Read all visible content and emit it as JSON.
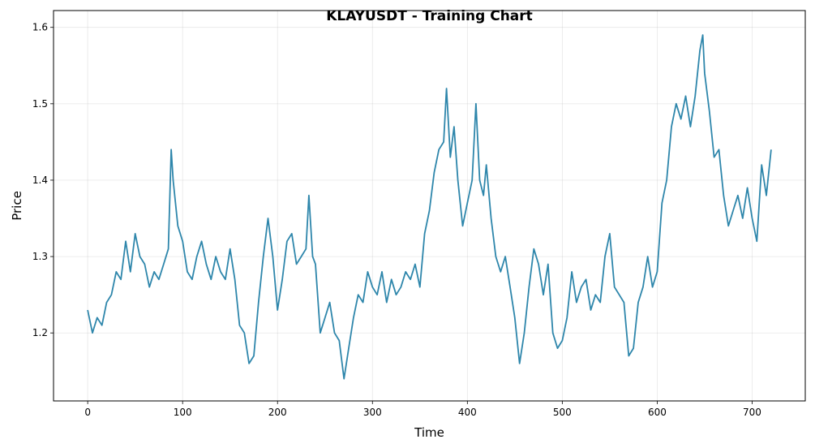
{
  "chart_data": {
    "type": "line",
    "title": "KLAYUSDT - Training Chart",
    "xlabel": "Time",
    "ylabel": "Price",
    "xlim": [
      -36,
      756
    ],
    "ylim": [
      1.111,
      1.622
    ],
    "x_ticks": [
      0,
      100,
      200,
      300,
      400,
      500,
      600,
      700
    ],
    "y_ticks": [
      1.2,
      1.3,
      1.4,
      1.5,
      1.6
    ],
    "grid": true,
    "legend": "none",
    "line_color": "#2e86ab",
    "series": [
      {
        "x": [
          0,
          5,
          10,
          15,
          20,
          25,
          30,
          35,
          40,
          45,
          50,
          55,
          60,
          65,
          70,
          75,
          80,
          85,
          88,
          90,
          95,
          100,
          105,
          110,
          115,
          120,
          125,
          130,
          135,
          140,
          145,
          150,
          155,
          160,
          165,
          170,
          175,
          180,
          185,
          190,
          195,
          200,
          205,
          210,
          215,
          220,
          225,
          230,
          233,
          237,
          240,
          245,
          250,
          255,
          260,
          265,
          270,
          275,
          280,
          285,
          290,
          295,
          300,
          305,
          310,
          315,
          320,
          325,
          330,
          335,
          340,
          345,
          350,
          355,
          360,
          365,
          370,
          375,
          378,
          382,
          386,
          390,
          395,
          400,
          405,
          409,
          413,
          417,
          420,
          425,
          430,
          435,
          440,
          445,
          450,
          455,
          460,
          465,
          470,
          475,
          480,
          485,
          490,
          495,
          500,
          505,
          510,
          515,
          520,
          525,
          530,
          535,
          540,
          545,
          550,
          555,
          560,
          565,
          570,
          575,
          580,
          585,
          590,
          595,
          600,
          605,
          610,
          615,
          620,
          625,
          630,
          635,
          640,
          645,
          648,
          650,
          655,
          660,
          665,
          670,
          675,
          680,
          685,
          690,
          695,
          700,
          705,
          710,
          715,
          720
        ],
        "values": [
          1.23,
          1.2,
          1.22,
          1.21,
          1.24,
          1.25,
          1.28,
          1.27,
          1.32,
          1.28,
          1.33,
          1.3,
          1.29,
          1.26,
          1.28,
          1.27,
          1.29,
          1.31,
          1.44,
          1.4,
          1.34,
          1.32,
          1.28,
          1.27,
          1.3,
          1.32,
          1.29,
          1.27,
          1.3,
          1.28,
          1.27,
          1.31,
          1.27,
          1.21,
          1.2,
          1.16,
          1.17,
          1.24,
          1.3,
          1.35,
          1.3,
          1.23,
          1.27,
          1.32,
          1.33,
          1.29,
          1.3,
          1.31,
          1.38,
          1.3,
          1.29,
          1.2,
          1.22,
          1.24,
          1.2,
          1.19,
          1.14,
          1.18,
          1.22,
          1.25,
          1.24,
          1.28,
          1.26,
          1.25,
          1.28,
          1.24,
          1.27,
          1.25,
          1.26,
          1.28,
          1.27,
          1.29,
          1.26,
          1.33,
          1.36,
          1.41,
          1.44,
          1.45,
          1.52,
          1.43,
          1.47,
          1.4,
          1.34,
          1.37,
          1.4,
          1.5,
          1.4,
          1.38,
          1.42,
          1.35,
          1.3,
          1.28,
          1.3,
          1.26,
          1.22,
          1.16,
          1.2,
          1.26,
          1.31,
          1.29,
          1.25,
          1.29,
          1.2,
          1.18,
          1.19,
          1.22,
          1.28,
          1.24,
          1.26,
          1.27,
          1.23,
          1.25,
          1.24,
          1.3,
          1.33,
          1.26,
          1.25,
          1.24,
          1.17,
          1.18,
          1.24,
          1.26,
          1.3,
          1.26,
          1.28,
          1.37,
          1.4,
          1.47,
          1.5,
          1.48,
          1.51,
          1.47,
          1.51,
          1.57,
          1.59,
          1.54,
          1.49,
          1.43,
          1.44,
          1.38,
          1.34,
          1.36,
          1.38,
          1.35,
          1.39,
          1.35,
          1.32,
          1.42,
          1.38,
          1.44
        ]
      }
    ]
  }
}
